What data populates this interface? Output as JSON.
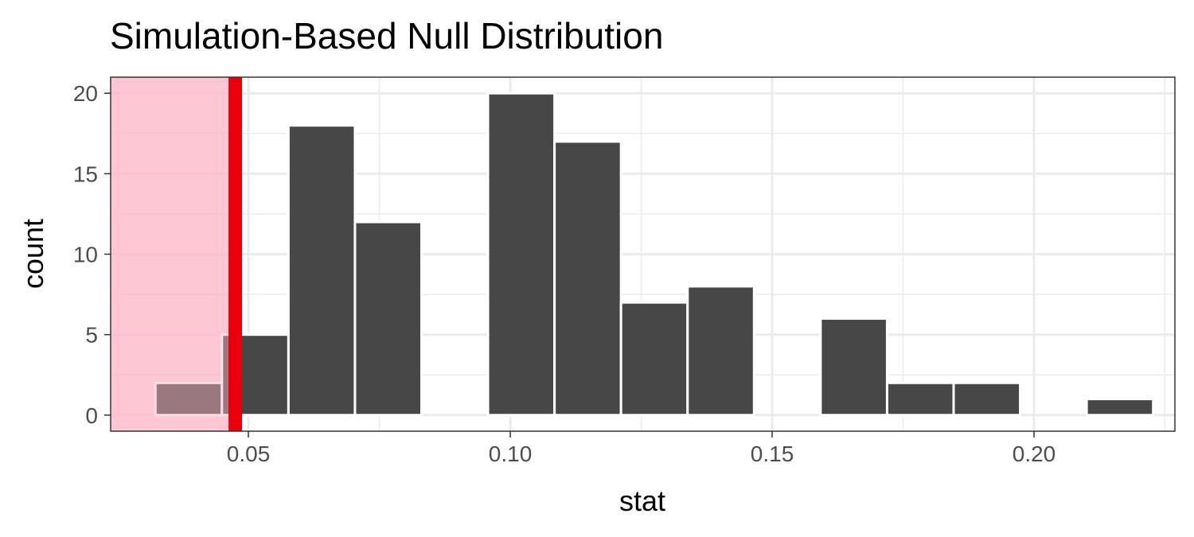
{
  "chart_data": {
    "type": "bar",
    "title": "Simulation-Based Null Distribution",
    "xlabel": "stat",
    "ylabel": "count",
    "xlim": [
      0.0237,
      0.2269
    ],
    "ylim": [
      -1.0,
      21.0
    ],
    "bin_width": 0.0127,
    "x_ticks": [
      0.05,
      0.1,
      0.15,
      0.2
    ],
    "x_tick_labels": [
      "0.05",
      "0.10",
      "0.15",
      "0.20"
    ],
    "y_ticks": [
      0,
      5,
      10,
      15,
      20
    ],
    "y_tick_labels": [
      "0",
      "5",
      "10",
      "15",
      "20"
    ],
    "bins": [
      {
        "center": 0.0386,
        "count": 2
      },
      {
        "center": 0.0513,
        "count": 5
      },
      {
        "center": 0.064,
        "count": 18
      },
      {
        "center": 0.0767,
        "count": 12
      },
      {
        "center": 0.0894,
        "count": 0
      },
      {
        "center": 0.1021,
        "count": 20
      },
      {
        "center": 0.1148,
        "count": 17
      },
      {
        "center": 0.1275,
        "count": 7
      },
      {
        "center": 0.1402,
        "count": 8
      },
      {
        "center": 0.1529,
        "count": 0
      },
      {
        "center": 0.1656,
        "count": 6
      },
      {
        "center": 0.1783,
        "count": 2
      },
      {
        "center": 0.191,
        "count": 2
      },
      {
        "center": 0.2037,
        "count": 0
      },
      {
        "center": 0.2164,
        "count": 1
      }
    ],
    "observed_stat": 0.0475,
    "shaded_region": [
      0.0237,
      0.0475
    ],
    "grid": true,
    "colors": {
      "bar": "#474747",
      "shade": "#ffb6c8",
      "observed_line": "#e8000b",
      "grid": "#ebebeb",
      "panel_border": "#333333"
    }
  }
}
